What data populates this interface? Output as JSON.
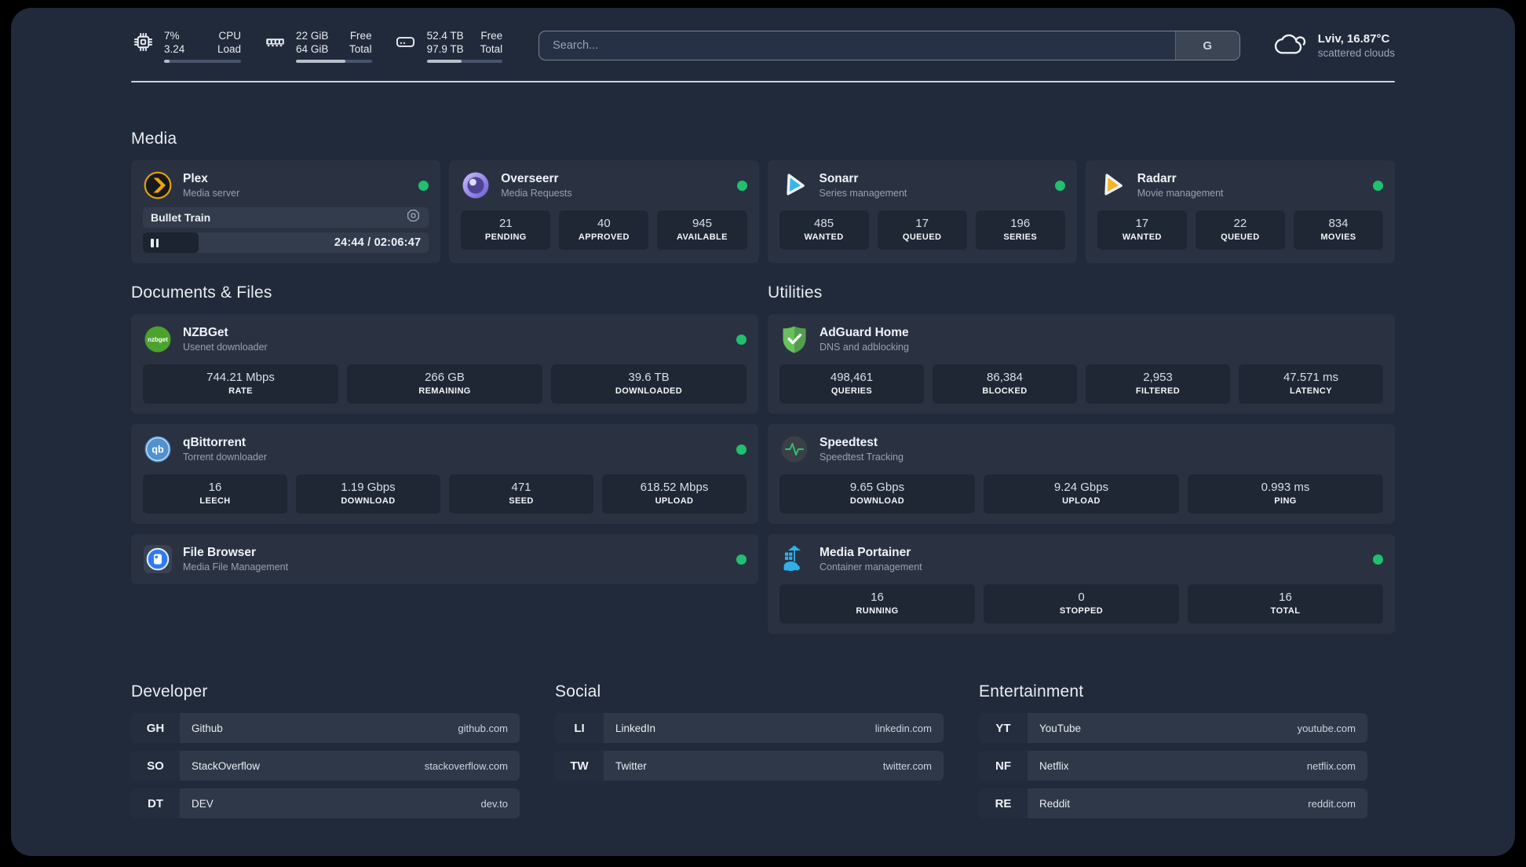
{
  "topbar": {
    "resources": [
      {
        "icon": "cpu",
        "v1": "7%",
        "v2": "3.24",
        "l1": "CPU",
        "l2": "Load",
        "pct": 7
      },
      {
        "icon": "memory",
        "v1": "22 GiB",
        "v2": "64 GiB",
        "l1": "Free",
        "l2": "Total",
        "pct": 65
      },
      {
        "icon": "disk",
        "v1": "52.4 TB",
        "v2": "97.9 TB",
        "l1": "Free",
        "l2": "Total",
        "pct": 46
      }
    ],
    "search": {
      "placeholder": "Search...",
      "button_label": "G"
    },
    "weather": {
      "summary": "Lviv, 16.87°C",
      "condition": "scattered clouds"
    }
  },
  "media": {
    "title": "Media",
    "plex": {
      "title": "Plex",
      "subtitle": "Media server",
      "online": true,
      "now_playing": "Bullet Train",
      "time": "24:44 / 02:06:47",
      "progress_pct": 19.5
    },
    "overseerr": {
      "title": "Overseerr",
      "subtitle": "Media Requests",
      "online": true,
      "stats": [
        {
          "value": "21",
          "label": "PENDING"
        },
        {
          "value": "40",
          "label": "APPROVED"
        },
        {
          "value": "945",
          "label": "AVAILABLE"
        }
      ]
    },
    "sonarr": {
      "title": "Sonarr",
      "subtitle": "Series management",
      "online": true,
      "stats": [
        {
          "value": "485",
          "label": "WANTED"
        },
        {
          "value": "17",
          "label": "QUEUED"
        },
        {
          "value": "196",
          "label": "SERIES"
        }
      ]
    },
    "radarr": {
      "title": "Radarr",
      "subtitle": "Movie management",
      "online": true,
      "stats": [
        {
          "value": "17",
          "label": "WANTED"
        },
        {
          "value": "22",
          "label": "QUEUED"
        },
        {
          "value": "834",
          "label": "MOVIES"
        }
      ]
    }
  },
  "documents": {
    "title": "Documents & Files",
    "nzbget": {
      "title": "NZBGet",
      "subtitle": "Usenet downloader",
      "online": true,
      "stats": [
        {
          "value": "744.21 Mbps",
          "label": "RATE"
        },
        {
          "value": "266 GB",
          "label": "REMAINING"
        },
        {
          "value": "39.6 TB",
          "label": "DOWNLOADED"
        }
      ]
    },
    "qbittorrent": {
      "title": "qBittorrent",
      "subtitle": "Torrent downloader",
      "online": true,
      "stats": [
        {
          "value": "16",
          "label": "LEECH"
        },
        {
          "value": "1.19 Gbps",
          "label": "DOWNLOAD"
        },
        {
          "value": "471",
          "label": "SEED"
        },
        {
          "value": "618.52 Mbps",
          "label": "UPLOAD"
        }
      ]
    },
    "filebrowser": {
      "title": "File Browser",
      "subtitle": "Media File Management",
      "online": true
    }
  },
  "utilities": {
    "title": "Utilities",
    "adguard": {
      "title": "AdGuard Home",
      "subtitle": "DNS and adblocking",
      "stats": [
        {
          "value": "498,461",
          "label": "QUERIES"
        },
        {
          "value": "86,384",
          "label": "BLOCKED"
        },
        {
          "value": "2,953",
          "label": "FILTERED"
        },
        {
          "value": "47.571 ms",
          "label": "LATENCY"
        }
      ]
    },
    "speedtest": {
      "title": "Speedtest",
      "subtitle": "Speedtest Tracking",
      "stats": [
        {
          "value": "9.65 Gbps",
          "label": "DOWNLOAD"
        },
        {
          "value": "9.24 Gbps",
          "label": "UPLOAD"
        },
        {
          "value": "0.993 ms",
          "label": "PING"
        }
      ]
    },
    "portainer": {
      "title": "Media Portainer",
      "subtitle": "Container management",
      "online": true,
      "stats": [
        {
          "value": "16",
          "label": "RUNNING"
        },
        {
          "value": "0",
          "label": "STOPPED"
        },
        {
          "value": "16",
          "label": "TOTAL"
        }
      ]
    }
  },
  "bookmarks": [
    {
      "title": "Developer",
      "items": [
        {
          "abbr": "GH",
          "name": "Github",
          "url": "github.com"
        },
        {
          "abbr": "SO",
          "name": "StackOverflow",
          "url": "stackoverflow.com"
        },
        {
          "abbr": "DT",
          "name": "DEV",
          "url": "dev.to"
        }
      ]
    },
    {
      "title": "Social",
      "items": [
        {
          "abbr": "LI",
          "name": "LinkedIn",
          "url": "linkedin.com"
        },
        {
          "abbr": "TW",
          "name": "Twitter",
          "url": "twitter.com"
        }
      ]
    },
    {
      "title": "Entertainment",
      "items": [
        {
          "abbr": "YT",
          "name": "YouTube",
          "url": "youtube.com"
        },
        {
          "abbr": "NF",
          "name": "Netflix",
          "url": "netflix.com"
        },
        {
          "abbr": "RE",
          "name": "Reddit",
          "url": "reddit.com"
        }
      ]
    }
  ],
  "colors": {
    "status_online": "#1fc06f",
    "page_bg": "#212a3a",
    "card_bg": "#2a3242",
    "plex_accent": "#e5a00d",
    "overseerr_accent": "#7a68dd",
    "sonarr_accent": "#37b6e9",
    "radarr_accent": "#f6b324",
    "nzbget_accent": "#4ba32d",
    "qbittorrent_accent": "#5091cf",
    "filebrowser_accent": "#2e7cf2",
    "adguard_accent": "#68c05b",
    "speedtest_accent": "#2fc06f",
    "portainer_accent": "#2fb1e8"
  }
}
